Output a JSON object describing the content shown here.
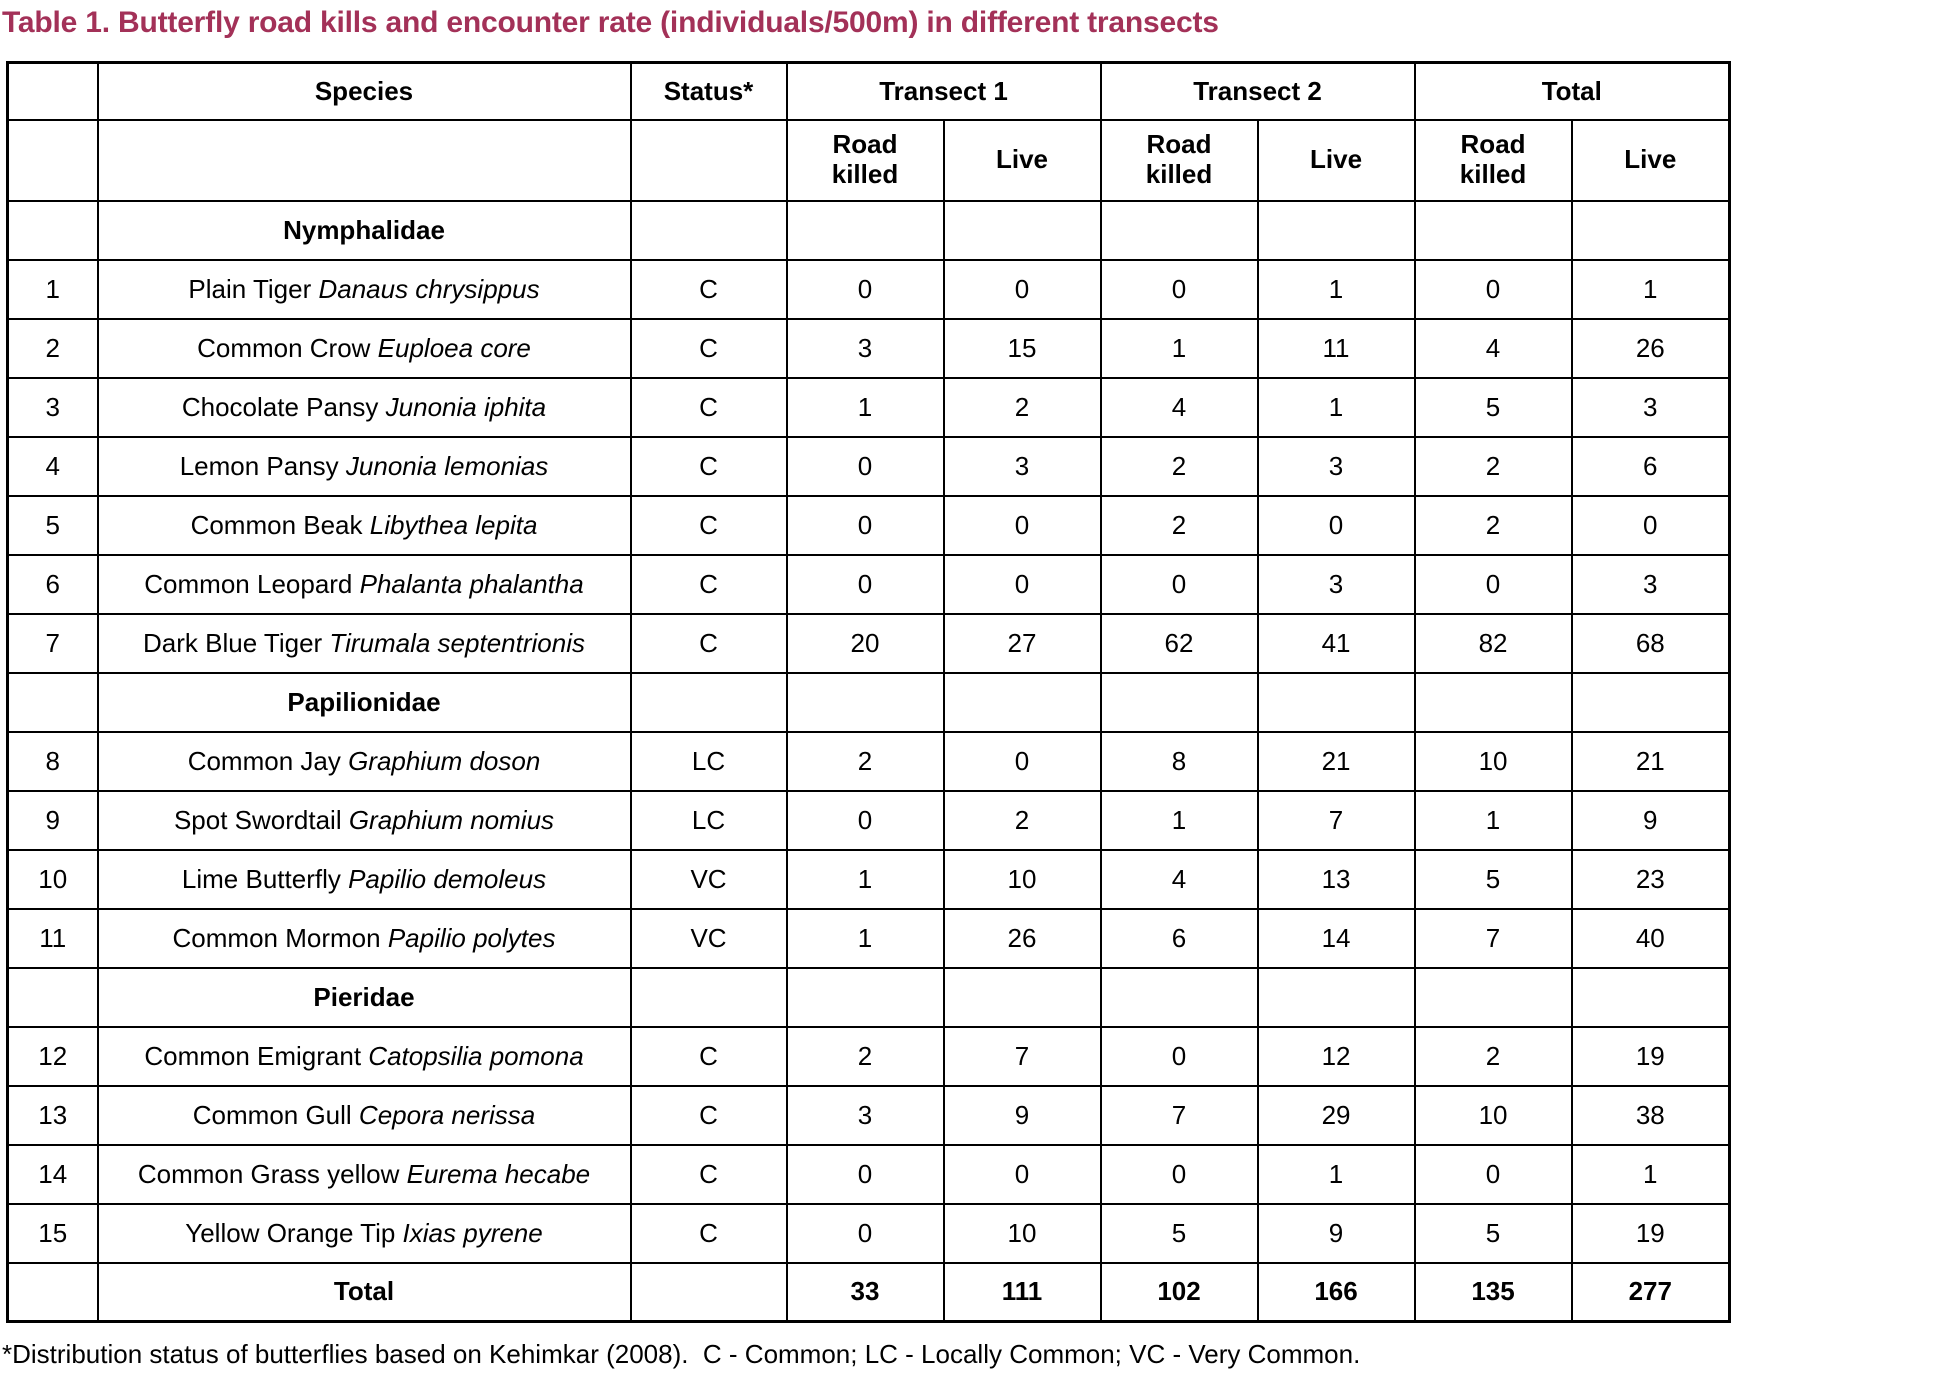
{
  "page": {
    "title": "Table 1. Butterfly road kills and encounter rate (individuals/500m) in different transects",
    "footnote": "*Distribution status of butterflies based on Kehimkar (2008).  C - Common; LC - Locally Common; VC - Very Common.",
    "accent_color": "#A33158"
  },
  "table": {
    "header": {
      "species": "Species",
      "status": "Status*",
      "transect1": "Transect 1",
      "transect2": "Transect 2",
      "total": "Total",
      "road_killed": "Road\nkilled",
      "live": "Live"
    },
    "rows": [
      {
        "type": "family",
        "name": "Nymphalidae"
      },
      {
        "type": "species",
        "no": "1",
        "common": "Plain Tiger ",
        "scientific": "Danaus chrysippus",
        "status": "C",
        "values": [
          "0",
          "0",
          "0",
          "1",
          "0",
          "1"
        ]
      },
      {
        "type": "species",
        "no": "2",
        "common": "Common Crow ",
        "scientific": "Euploea core",
        "status": "C",
        "values": [
          "3",
          "15",
          "1",
          "11",
          "4",
          "26"
        ]
      },
      {
        "type": "species",
        "no": "3",
        "common": "Chocolate Pansy ",
        "scientific": "Junonia iphita",
        "status": "C",
        "values": [
          "1",
          "2",
          "4",
          "1",
          "5",
          "3"
        ]
      },
      {
        "type": "species",
        "no": "4",
        "common": "Lemon Pansy ",
        "scientific": "Junonia lemonias",
        "status": "C",
        "values": [
          "0",
          "3",
          "2",
          "3",
          "2",
          "6"
        ]
      },
      {
        "type": "species",
        "no": "5",
        "common": "Common Beak ",
        "scientific": "Libythea lepita",
        "status": "C",
        "values": [
          "0",
          "0",
          "2",
          "0",
          "2",
          "0"
        ]
      },
      {
        "type": "species",
        "no": "6",
        "common": "Common Leopard ",
        "scientific": "Phalanta phalantha",
        "status": "C",
        "values": [
          "0",
          "0",
          "0",
          "3",
          "0",
          "3"
        ]
      },
      {
        "type": "species",
        "no": "7",
        "common": "Dark Blue Tiger ",
        "scientific": "Tirumala septentrionis",
        "status": "C",
        "values": [
          "20",
          "27",
          "62",
          "41",
          "82",
          "68"
        ]
      },
      {
        "type": "family",
        "name": "Papilionidae"
      },
      {
        "type": "species",
        "no": "8",
        "common": "Common Jay ",
        "scientific": "Graphium doson",
        "status": "LC",
        "values": [
          "2",
          "0",
          "8",
          "21",
          "10",
          "21"
        ]
      },
      {
        "type": "species",
        "no": "9",
        "common": "Spot Swordtail ",
        "scientific": "Graphium nomius",
        "status": "LC",
        "values": [
          "0",
          "2",
          "1",
          "7",
          "1",
          "9"
        ]
      },
      {
        "type": "species",
        "no": "10",
        "common": "Lime Butterfly ",
        "scientific": "Papilio demoleus",
        "status": "VC",
        "values": [
          "1",
          "10",
          "4",
          "13",
          "5",
          "23"
        ]
      },
      {
        "type": "species",
        "no": "11",
        "common": "Common Mormon ",
        "scientific": "Papilio polytes",
        "status": "VC",
        "values": [
          "1",
          "26",
          "6",
          "14",
          "7",
          "40"
        ]
      },
      {
        "type": "family",
        "name": "Pieridae"
      },
      {
        "type": "species",
        "no": "12",
        "common": "Common Emigrant ",
        "scientific": "Catopsilia pomona",
        "status": "C",
        "values": [
          "2",
          "7",
          "0",
          "12",
          "2",
          "19"
        ]
      },
      {
        "type": "species",
        "no": "13",
        "common": "Common Gull ",
        "scientific": "Cepora nerissa",
        "status": "C",
        "values": [
          "3",
          "9",
          "7",
          "29",
          "10",
          "38"
        ]
      },
      {
        "type": "species",
        "no": "14",
        "common": "Common Grass yellow ",
        "scientific": "Eurema hecabe",
        "status": "C",
        "values": [
          "0",
          "0",
          "0",
          "1",
          "0",
          "1"
        ]
      },
      {
        "type": "species",
        "no": "15",
        "common": "Yellow Orange Tip ",
        "scientific": "Ixias pyrene",
        "status": "C",
        "values": [
          "0",
          "10",
          "5",
          "9",
          "5",
          "19"
        ]
      },
      {
        "type": "total",
        "label": "Total",
        "values": [
          "33",
          "111",
          "102",
          "166",
          "135",
          "277"
        ]
      }
    ]
  }
}
